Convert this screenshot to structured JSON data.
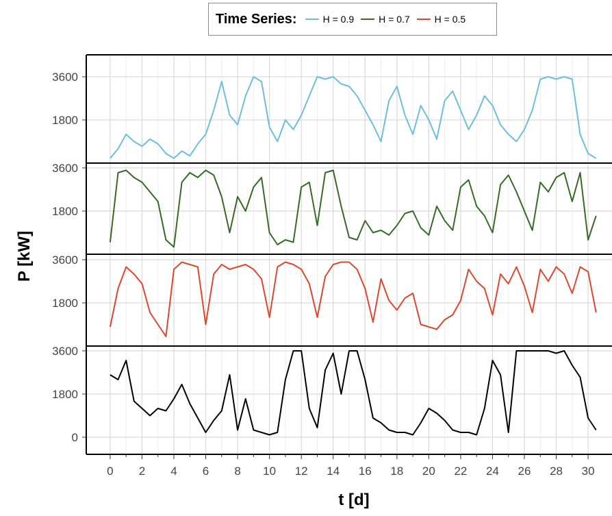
{
  "legend": {
    "title": "Time Series:",
    "items": [
      {
        "label": "H = 0.9",
        "color": "#6cbfd9"
      },
      {
        "label": "H = 0.7",
        "color": "#356927"
      },
      {
        "label": "H = 0.5",
        "color": "#e0452a"
      }
    ]
  },
  "chart_data": {
    "type": "line",
    "title": "",
    "xlabel": "t [d]",
    "ylabel": "P [kW]",
    "xlim": [
      -1.5,
      31.5
    ],
    "ylim": [
      0,
      3600
    ],
    "x_ticks": [
      0,
      2,
      4,
      6,
      8,
      10,
      12,
      14,
      16,
      18,
      20,
      22,
      24,
      26,
      28,
      30
    ],
    "y_ticks": [
      0,
      1800,
      3600
    ],
    "grid": true,
    "legend_position": "top-center",
    "panels": [
      {
        "name": "H = 0.9",
        "color": "#6cbfd9",
        "y_tick_labels": [
          "1800",
          "3600"
        ],
        "x": [
          0,
          0.5,
          1,
          1.5,
          2,
          2.5,
          3,
          3.5,
          4,
          4.5,
          5,
          5.5,
          6,
          6.5,
          7,
          7.5,
          8,
          8.5,
          9,
          9.5,
          10,
          10.5,
          11,
          11.5,
          12,
          12.5,
          13,
          13.5,
          14,
          14.5,
          15,
          15.5,
          16,
          16.5,
          17,
          17.5,
          18,
          18.5,
          19,
          19.5,
          20,
          20.5,
          21,
          21.5,
          22,
          22.5,
          23,
          23.5,
          24,
          24.5,
          25,
          25.5,
          26,
          26.5,
          27,
          27.5,
          28,
          28.5,
          29,
          29.5,
          30,
          30.5
        ],
        "values": [
          200,
          600,
          1200,
          900,
          700,
          1000,
          800,
          400,
          200,
          500,
          300,
          800,
          1200,
          2200,
          3400,
          2000,
          1600,
          2800,
          3600,
          3400,
          1500,
          900,
          1800,
          1400,
          2000,
          2800,
          3600,
          3500,
          3600,
          3300,
          3200,
          2800,
          2200,
          1600,
          900,
          2600,
          3200,
          2000,
          1200,
          2400,
          1800,
          1000,
          2600,
          3000,
          2200,
          1400,
          2000,
          2800,
          2400,
          1600,
          1200,
          900,
          1400,
          2200,
          3500,
          3600,
          3500,
          3600,
          3500,
          1200,
          400,
          200
        ]
      },
      {
        "name": "H = 0.7",
        "color": "#356927",
        "y_tick_labels": [
          "1800",
          "3600"
        ],
        "x": [
          0,
          0.5,
          1,
          1.5,
          2,
          2.5,
          3,
          3.5,
          4,
          4.5,
          5,
          5.5,
          6,
          6.5,
          7,
          7.5,
          8,
          8.5,
          9,
          9.5,
          10,
          10.5,
          11,
          11.5,
          12,
          12.5,
          13,
          13.5,
          14,
          14.5,
          15,
          15.5,
          16,
          16.5,
          17,
          17.5,
          18,
          18.5,
          19,
          19.5,
          20,
          20.5,
          21,
          21.5,
          22,
          22.5,
          23,
          23.5,
          24,
          24.5,
          25,
          25.5,
          26,
          26.5,
          27,
          27.5,
          28,
          28.5,
          29,
          29.5,
          30,
          30.5
        ],
        "values": [
          500,
          3400,
          3500,
          3200,
          3000,
          2600,
          2200,
          600,
          300,
          3000,
          3400,
          3200,
          3500,
          3300,
          2400,
          900,
          2400,
          1800,
          2800,
          3200,
          900,
          400,
          600,
          500,
          2800,
          3000,
          1200,
          3400,
          3500,
          2000,
          700,
          600,
          1400,
          900,
          1000,
          800,
          1200,
          1700,
          1800,
          1100,
          800,
          2000,
          1400,
          1000,
          2800,
          3100,
          2000,
          1600,
          900,
          2900,
          3300,
          2600,
          1800,
          1000,
          3000,
          2600,
          3200,
          3400,
          2200,
          3400,
          600,
          1600
        ]
      },
      {
        "name": "H = 0.5",
        "color": "#e0452a",
        "y_tick_labels": [
          "1800",
          "3600"
        ],
        "x": [
          0,
          0.5,
          1,
          1.5,
          2,
          2.5,
          3,
          3.5,
          4,
          4.5,
          5,
          5.5,
          6,
          6.5,
          7,
          7.5,
          8,
          8.5,
          9,
          9.5,
          10,
          10.5,
          11,
          11.5,
          12,
          12.5,
          13,
          13.5,
          14,
          14.5,
          15,
          15.5,
          16,
          16.5,
          17,
          17.5,
          18,
          18.5,
          19,
          19.5,
          20,
          20.5,
          21,
          21.5,
          22,
          22.5,
          23,
          23.5,
          24,
          24.5,
          25,
          25.5,
          26,
          26.5,
          27,
          27.5,
          28,
          28.5,
          29,
          29.5,
          30,
          30.5
        ],
        "values": [
          800,
          2400,
          3300,
          3000,
          2600,
          1400,
          900,
          400,
          3200,
          3500,
          3400,
          3300,
          900,
          3000,
          3400,
          3200,
          3300,
          3400,
          3200,
          2800,
          1200,
          3300,
          3500,
          3400,
          3200,
          2600,
          1200,
          2900,
          3400,
          3500,
          3500,
          3200,
          2400,
          1000,
          2800,
          1900,
          1500,
          2000,
          2200,
          900,
          800,
          700,
          1100,
          1300,
          1900,
          3200,
          2700,
          2400,
          1300,
          3000,
          2600,
          3300,
          2500,
          1400,
          3200,
          2700,
          3300,
          3000,
          2200,
          3300,
          3100,
          1400
        ]
      },
      {
        "name": "",
        "color": "#000000",
        "y_tick_labels": [
          "0",
          "1800",
          "3600"
        ],
        "x": [
          0,
          0.5,
          1,
          1.5,
          2,
          2.5,
          3,
          3.5,
          4,
          4.5,
          5,
          5.5,
          6,
          6.5,
          7,
          7.5,
          8,
          8.5,
          9,
          9.5,
          10,
          10.5,
          11,
          11.5,
          12,
          12.5,
          13,
          13.5,
          14,
          14.5,
          15,
          15.5,
          16,
          16.5,
          17,
          17.5,
          18,
          18.5,
          19,
          19.5,
          20,
          20.5,
          21,
          21.5,
          22,
          22.5,
          23,
          23.5,
          24,
          24.5,
          25,
          25.5,
          26,
          26.5,
          27,
          27.5,
          28,
          28.5,
          29,
          29.5,
          30,
          30.5
        ],
        "values": [
          2600,
          2400,
          3200,
          1500,
          1200,
          900,
          1200,
          1100,
          1600,
          2200,
          1400,
          800,
          200,
          700,
          1100,
          2600,
          300,
          1600,
          300,
          200,
          100,
          200,
          2400,
          3600,
          3600,
          1200,
          400,
          2800,
          3500,
          1800,
          3600,
          3600,
          2400,
          800,
          600,
          300,
          200,
          200,
          100,
          600,
          1200,
          1000,
          700,
          300,
          200,
          200,
          100,
          1200,
          3200,
          2600,
          200,
          3600,
          3600,
          3600,
          3600,
          3600,
          3500,
          3600,
          3000,
          2500,
          800,
          300
        ]
      }
    ]
  }
}
